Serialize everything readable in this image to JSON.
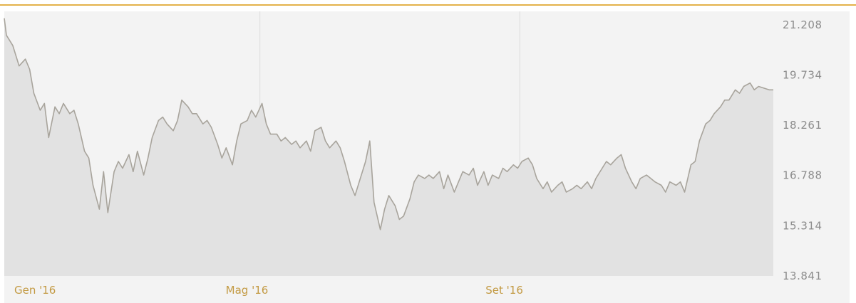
{
  "chart_data": {
    "type": "area",
    "title": "",
    "xlabel": "",
    "ylabel": "",
    "y_ticks": [
      "21.208",
      "19.734",
      "18.261",
      "16.788",
      "15.314",
      "13.841"
    ],
    "y_tick_values": [
      21.208,
      19.734,
      18.261,
      16.788,
      15.314,
      13.841
    ],
    "x_ticks": [
      "Gen '16",
      "Mag '16",
      "Set '16"
    ],
    "x_tick_dates": [
      "2016-01-01",
      "2016-05-01",
      "2016-09-01"
    ],
    "ylim": [
      13.841,
      21.6
    ],
    "xlim": [
      "2016-01-01",
      "2016-12-30"
    ],
    "grid": "vertical lines at month ticks",
    "series": [
      {
        "color": "#a8a49c",
        "fill": "#e2e2e2",
        "points": [
          [
            "2016-01-01",
            21.4
          ],
          [
            "2016-01-02",
            20.9
          ],
          [
            "2016-01-05",
            20.6
          ],
          [
            "2016-01-08",
            20.0
          ],
          [
            "2016-01-11",
            20.2
          ],
          [
            "2016-01-13",
            19.9
          ],
          [
            "2016-01-15",
            19.2
          ],
          [
            "2016-01-18",
            18.7
          ],
          [
            "2016-01-20",
            18.9
          ],
          [
            "2016-01-22",
            17.9
          ],
          [
            "2016-01-25",
            18.8
          ],
          [
            "2016-01-27",
            18.6
          ],
          [
            "2016-01-29",
            18.9
          ],
          [
            "2016-02-01",
            18.6
          ],
          [
            "2016-02-03",
            18.7
          ],
          [
            "2016-02-05",
            18.3
          ],
          [
            "2016-02-08",
            17.5
          ],
          [
            "2016-02-10",
            17.3
          ],
          [
            "2016-02-12",
            16.5
          ],
          [
            "2016-02-15",
            15.8
          ],
          [
            "2016-02-17",
            16.9
          ],
          [
            "2016-02-19",
            15.7
          ],
          [
            "2016-02-22",
            16.9
          ],
          [
            "2016-02-24",
            17.2
          ],
          [
            "2016-02-26",
            17.0
          ],
          [
            "2016-02-29",
            17.4
          ],
          [
            "2016-03-02",
            16.9
          ],
          [
            "2016-03-04",
            17.5
          ],
          [
            "2016-03-07",
            16.8
          ],
          [
            "2016-03-09",
            17.3
          ],
          [
            "2016-03-11",
            17.9
          ],
          [
            "2016-03-14",
            18.4
          ],
          [
            "2016-03-16",
            18.5
          ],
          [
            "2016-03-18",
            18.3
          ],
          [
            "2016-03-21",
            18.1
          ],
          [
            "2016-03-23",
            18.4
          ],
          [
            "2016-03-25",
            19.0
          ],
          [
            "2016-03-28",
            18.8
          ],
          [
            "2016-03-30",
            18.6
          ],
          [
            "2016-04-01",
            18.6
          ],
          [
            "2016-04-04",
            18.3
          ],
          [
            "2016-04-06",
            18.4
          ],
          [
            "2016-04-08",
            18.2
          ],
          [
            "2016-04-11",
            17.7
          ],
          [
            "2016-04-13",
            17.3
          ],
          [
            "2016-04-15",
            17.6
          ],
          [
            "2016-04-18",
            17.1
          ],
          [
            "2016-04-20",
            17.8
          ],
          [
            "2016-04-22",
            18.3
          ],
          [
            "2016-04-25",
            18.4
          ],
          [
            "2016-04-27",
            18.7
          ],
          [
            "2016-04-29",
            18.5
          ],
          [
            "2016-05-02",
            18.9
          ],
          [
            "2016-05-04",
            18.3
          ],
          [
            "2016-05-06",
            18.0
          ],
          [
            "2016-05-09",
            18.0
          ],
          [
            "2016-05-11",
            17.8
          ],
          [
            "2016-05-13",
            17.9
          ],
          [
            "2016-05-16",
            17.7
          ],
          [
            "2016-05-18",
            17.8
          ],
          [
            "2016-05-20",
            17.6
          ],
          [
            "2016-05-23",
            17.8
          ],
          [
            "2016-05-25",
            17.5
          ],
          [
            "2016-05-27",
            18.1
          ],
          [
            "2016-05-30",
            18.2
          ],
          [
            "2016-06-01",
            17.8
          ],
          [
            "2016-06-03",
            17.6
          ],
          [
            "2016-06-06",
            17.8
          ],
          [
            "2016-06-08",
            17.6
          ],
          [
            "2016-06-10",
            17.2
          ],
          [
            "2016-06-13",
            16.5
          ],
          [
            "2016-06-15",
            16.2
          ],
          [
            "2016-06-17",
            16.6
          ],
          [
            "2016-06-20",
            17.2
          ],
          [
            "2016-06-22",
            17.8
          ],
          [
            "2016-06-24",
            16.0
          ],
          [
            "2016-06-27",
            15.2
          ],
          [
            "2016-06-29",
            15.8
          ],
          [
            "2016-07-01",
            16.2
          ],
          [
            "2016-07-04",
            15.9
          ],
          [
            "2016-07-06",
            15.5
          ],
          [
            "2016-07-08",
            15.6
          ],
          [
            "2016-07-11",
            16.1
          ],
          [
            "2016-07-13",
            16.6
          ],
          [
            "2016-07-15",
            16.8
          ],
          [
            "2016-07-18",
            16.7
          ],
          [
            "2016-07-20",
            16.8
          ],
          [
            "2016-07-22",
            16.7
          ],
          [
            "2016-07-25",
            16.9
          ],
          [
            "2016-07-27",
            16.4
          ],
          [
            "2016-07-29",
            16.8
          ],
          [
            "2016-08-01",
            16.3
          ],
          [
            "2016-08-03",
            16.6
          ],
          [
            "2016-08-05",
            16.9
          ],
          [
            "2016-08-08",
            16.8
          ],
          [
            "2016-08-10",
            17.0
          ],
          [
            "2016-08-12",
            16.5
          ],
          [
            "2016-08-15",
            16.9
          ],
          [
            "2016-08-17",
            16.5
          ],
          [
            "2016-08-19",
            16.8
          ],
          [
            "2016-08-22",
            16.7
          ],
          [
            "2016-08-24",
            17.0
          ],
          [
            "2016-08-26",
            16.9
          ],
          [
            "2016-08-29",
            17.1
          ],
          [
            "2016-08-31",
            17.0
          ],
          [
            "2016-09-02",
            17.2
          ],
          [
            "2016-09-05",
            17.3
          ],
          [
            "2016-09-07",
            17.1
          ],
          [
            "2016-09-09",
            16.7
          ],
          [
            "2016-09-12",
            16.4
          ],
          [
            "2016-09-14",
            16.6
          ],
          [
            "2016-09-16",
            16.3
          ],
          [
            "2016-09-19",
            16.5
          ],
          [
            "2016-09-21",
            16.6
          ],
          [
            "2016-09-23",
            16.3
          ],
          [
            "2016-09-26",
            16.4
          ],
          [
            "2016-09-28",
            16.5
          ],
          [
            "2016-09-30",
            16.4
          ],
          [
            "2016-10-03",
            16.6
          ],
          [
            "2016-10-05",
            16.4
          ],
          [
            "2016-10-07",
            16.7
          ],
          [
            "2016-10-10",
            17.0
          ],
          [
            "2016-10-12",
            17.2
          ],
          [
            "2016-10-14",
            17.1
          ],
          [
            "2016-10-17",
            17.3
          ],
          [
            "2016-10-19",
            17.4
          ],
          [
            "2016-10-21",
            17.0
          ],
          [
            "2016-10-24",
            16.6
          ],
          [
            "2016-10-26",
            16.4
          ],
          [
            "2016-10-28",
            16.7
          ],
          [
            "2016-10-31",
            16.8
          ],
          [
            "2016-11-02",
            16.7
          ],
          [
            "2016-11-04",
            16.6
          ],
          [
            "2016-11-07",
            16.5
          ],
          [
            "2016-11-09",
            16.3
          ],
          [
            "2016-11-11",
            16.6
          ],
          [
            "2016-11-14",
            16.5
          ],
          [
            "2016-11-16",
            16.6
          ],
          [
            "2016-11-18",
            16.3
          ],
          [
            "2016-11-21",
            17.1
          ],
          [
            "2016-11-23",
            17.2
          ],
          [
            "2016-11-25",
            17.8
          ],
          [
            "2016-11-28",
            18.3
          ],
          [
            "2016-11-30",
            18.4
          ],
          [
            "2016-12-02",
            18.6
          ],
          [
            "2016-12-05",
            18.8
          ],
          [
            "2016-12-07",
            19.0
          ],
          [
            "2016-12-09",
            19.0
          ],
          [
            "2016-12-12",
            19.3
          ],
          [
            "2016-12-14",
            19.2
          ],
          [
            "2016-12-16",
            19.4
          ],
          [
            "2016-12-19",
            19.5
          ],
          [
            "2016-12-21",
            19.3
          ],
          [
            "2016-12-23",
            19.4
          ],
          [
            "2016-12-28",
            19.3
          ],
          [
            "2016-12-30",
            19.3
          ]
        ]
      }
    ]
  }
}
